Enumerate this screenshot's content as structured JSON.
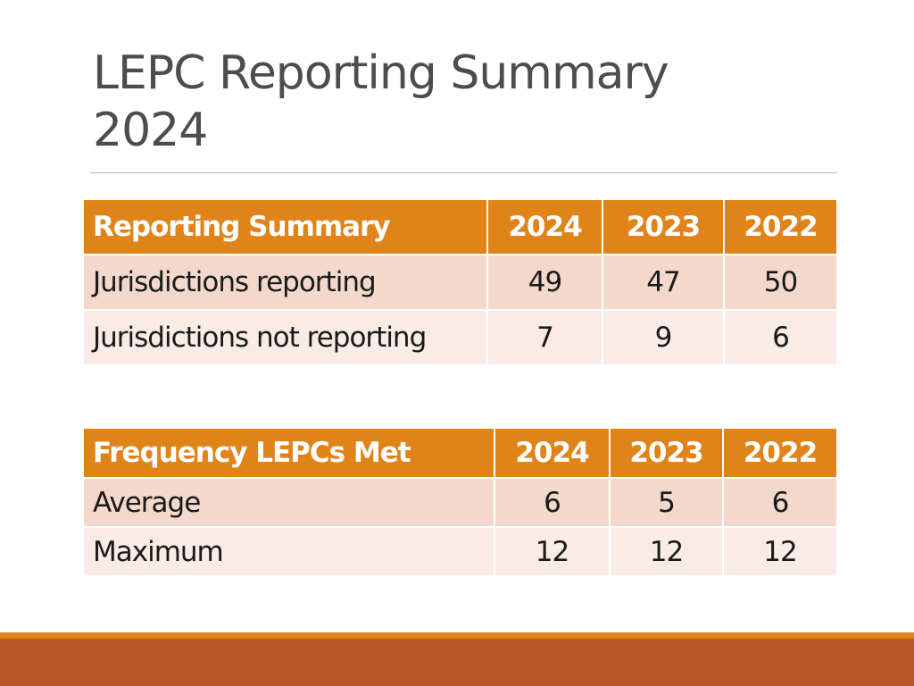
{
  "slide": {
    "title_line1": "LEPC Reporting Summary",
    "title_line2": "2024"
  },
  "reporting_table": {
    "headers": [
      "Reporting Summary",
      "2024",
      "2023",
      "2022"
    ],
    "rows": [
      [
        "Jurisdictions reporting",
        "49",
        "47",
        "50"
      ],
      [
        "Jurisdictions not reporting",
        "7",
        "9",
        "6"
      ]
    ]
  },
  "frequency_table": {
    "headers": [
      "Frequency LEPCs Met",
      "2024",
      "2023",
      "2022"
    ],
    "rows": [
      [
        "Average",
        "6",
        "5",
        "6"
      ],
      [
        "Maximum",
        "12",
        "12",
        "12"
      ]
    ]
  },
  "colors": {
    "header_fill": "#e0841a",
    "row_odd_fill": "#f3d8cb",
    "row_even_fill": "#f9ebe6",
    "footer_accent": "#e0841a",
    "footer_band": "#b9592c",
    "title_text": "#4d4d4d"
  }
}
